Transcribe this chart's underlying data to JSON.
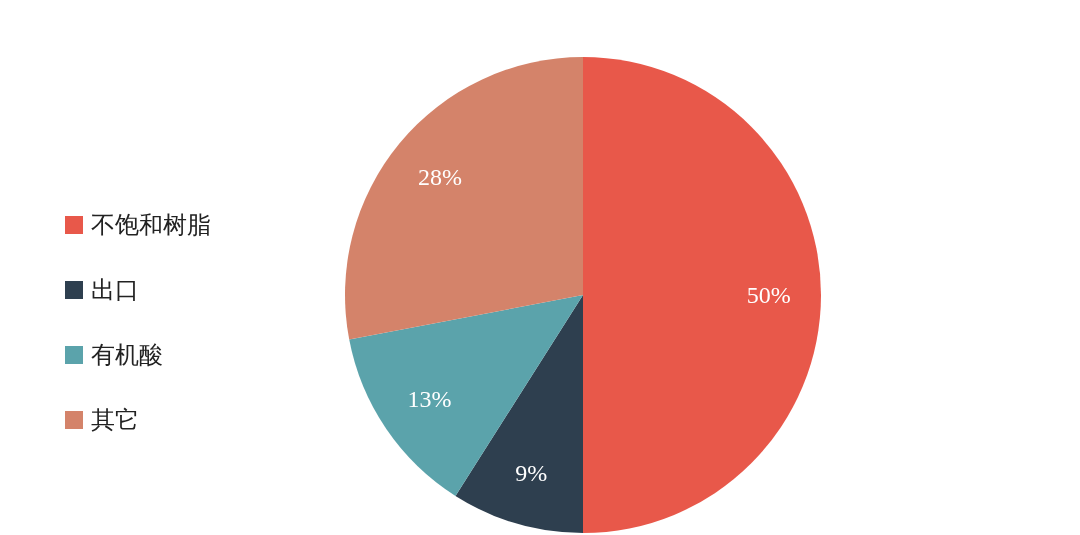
{
  "chart_data": {
    "type": "pie",
    "categories": [
      "不饱和树脂",
      "出口",
      "有机酸",
      "其它"
    ],
    "values": [
      50,
      9,
      13,
      28
    ],
    "colors": [
      "#e8584a",
      "#2e3f4f",
      "#5ba3ab",
      "#d4836a"
    ],
    "value_labels": [
      "50%",
      "9%",
      "13%",
      "28%"
    ],
    "legend": "left"
  }
}
